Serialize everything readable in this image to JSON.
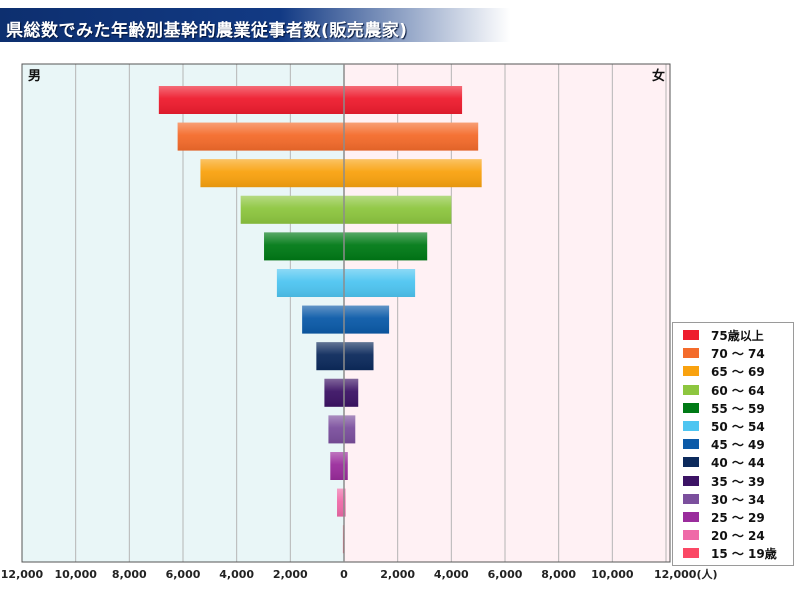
{
  "title": "県総数でみた年齢別基幹的農業従事者数(販売農家)",
  "chart_data": {
    "type": "bar",
    "orientation": "horizontal-population-pyramid",
    "left_label": "男",
    "right_label": "女",
    "x_ticks": [
      "12,000",
      "10,000",
      "8,000",
      "6,000",
      "4,000",
      "2,000",
      "0",
      "2,000",
      "4,000",
      "6,000",
      "8,000",
      "10,000",
      "12,000(人)"
    ],
    "xlim": [
      -12000,
      12000
    ],
    "grid": true,
    "legend_position": "right",
    "categories": [
      "75歳以上",
      "70 ～ 74",
      "65 ～ 69",
      "60 ～ 64",
      "55 ～ 59",
      "50 ～ 54",
      "45 ～ 49",
      "40 ～ 44",
      "35 ～ 39",
      "30 ～ 34",
      "25 ～ 29",
      "20 ～ 24",
      "15 ～ 19歳"
    ],
    "colors": [
      "#ee1c2e",
      "#f46b2b",
      "#f9a20f",
      "#8dc63f",
      "#007a16",
      "#4ec5f1",
      "#0b5aa8",
      "#0c2a5c",
      "#3c1365",
      "#7b4f9d",
      "#9a2c9c",
      "#ef6aa8",
      "#fb4865"
    ],
    "series": [
      {
        "name": "男",
        "values": [
          6900,
          6200,
          5350,
          3850,
          2980,
          2500,
          1560,
          1030,
          730,
          580,
          510,
          260,
          40
        ]
      },
      {
        "name": "女",
        "values": [
          4400,
          5000,
          5130,
          4000,
          3100,
          2650,
          1680,
          1100,
          530,
          420,
          140,
          60,
          20
        ]
      }
    ]
  }
}
